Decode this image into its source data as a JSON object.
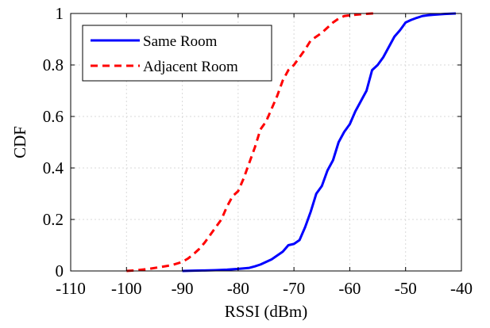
{
  "chart_data": {
    "type": "line",
    "title": "",
    "xlabel": "RSSI (dBm)",
    "ylabel": "CDF",
    "xlim": [
      -110,
      -40
    ],
    "ylim": [
      0,
      1
    ],
    "x_ticks": [
      -110,
      -100,
      -90,
      -80,
      -70,
      -60,
      -50,
      -40
    ],
    "y_ticks": [
      0,
      0.2,
      0.4,
      0.6,
      0.8,
      1
    ],
    "x_tick_labels": [
      "-110",
      "-100",
      "-90",
      "-80",
      "-70",
      "-60",
      "-50",
      "-40"
    ],
    "y_tick_labels": [
      "0",
      "0.2",
      "0.4",
      "0.6",
      "0.8",
      "1"
    ],
    "grid": true,
    "legend_position": "top-left",
    "series": [
      {
        "name": "Same Room",
        "color": "#0000ff",
        "line_style": "solid",
        "points": [
          [
            -90,
            0.0
          ],
          [
            -88,
            0.001
          ],
          [
            -86,
            0.002
          ],
          [
            -84,
            0.003
          ],
          [
            -82,
            0.005
          ],
          [
            -80,
            0.008
          ],
          [
            -78,
            0.012
          ],
          [
            -77,
            0.018
          ],
          [
            -76,
            0.025
          ],
          [
            -75,
            0.035
          ],
          [
            -74,
            0.045
          ],
          [
            -73,
            0.06
          ],
          [
            -72,
            0.075
          ],
          [
            -71,
            0.1
          ],
          [
            -70,
            0.105
          ],
          [
            -69,
            0.12
          ],
          [
            -68,
            0.17
          ],
          [
            -67,
            0.23
          ],
          [
            -66,
            0.3
          ],
          [
            -65,
            0.33
          ],
          [
            -64,
            0.39
          ],
          [
            -63,
            0.43
          ],
          [
            -62,
            0.5
          ],
          [
            -61,
            0.54
          ],
          [
            -60,
            0.57
          ],
          [
            -59,
            0.62
          ],
          [
            -58,
            0.66
          ],
          [
            -57,
            0.7
          ],
          [
            -56,
            0.78
          ],
          [
            -55,
            0.8
          ],
          [
            -54,
            0.83
          ],
          [
            -53,
            0.87
          ],
          [
            -52,
            0.91
          ],
          [
            -51,
            0.935
          ],
          [
            -50,
            0.965
          ],
          [
            -49,
            0.975
          ],
          [
            -48,
            0.983
          ],
          [
            -47,
            0.99
          ],
          [
            -46,
            0.993
          ],
          [
            -45,
            0.995
          ],
          [
            -43,
            0.998
          ],
          [
            -41,
            1.0
          ]
        ]
      },
      {
        "name": "Adjacent Room",
        "color": "#ff0000",
        "line_style": "dashed",
        "points": [
          [
            -100,
            0.0
          ],
          [
            -98,
            0.003
          ],
          [
            -96,
            0.008
          ],
          [
            -94,
            0.015
          ],
          [
            -92,
            0.022
          ],
          [
            -90,
            0.035
          ],
          [
            -89,
            0.048
          ],
          [
            -88,
            0.065
          ],
          [
            -87,
            0.085
          ],
          [
            -86,
            0.11
          ],
          [
            -85,
            0.14
          ],
          [
            -84,
            0.17
          ],
          [
            -83,
            0.2
          ],
          [
            -82,
            0.25
          ],
          [
            -81,
            0.29
          ],
          [
            -80,
            0.31
          ],
          [
            -79,
            0.36
          ],
          [
            -78,
            0.42
          ],
          [
            -77,
            0.48
          ],
          [
            -76,
            0.55
          ],
          [
            -75,
            0.58
          ],
          [
            -74,
            0.63
          ],
          [
            -73,
            0.68
          ],
          [
            -72,
            0.74
          ],
          [
            -71,
            0.78
          ],
          [
            -70,
            0.8
          ],
          [
            -69,
            0.83
          ],
          [
            -68,
            0.86
          ],
          [
            -67,
            0.895
          ],
          [
            -66,
            0.91
          ],
          [
            -65,
            0.925
          ],
          [
            -64,
            0.945
          ],
          [
            -63,
            0.965
          ],
          [
            -62,
            0.98
          ],
          [
            -61,
            0.99
          ],
          [
            -60,
            0.993
          ],
          [
            -58,
            0.997
          ],
          [
            -56,
            1.0
          ],
          [
            -55,
            1.0
          ]
        ]
      }
    ]
  }
}
